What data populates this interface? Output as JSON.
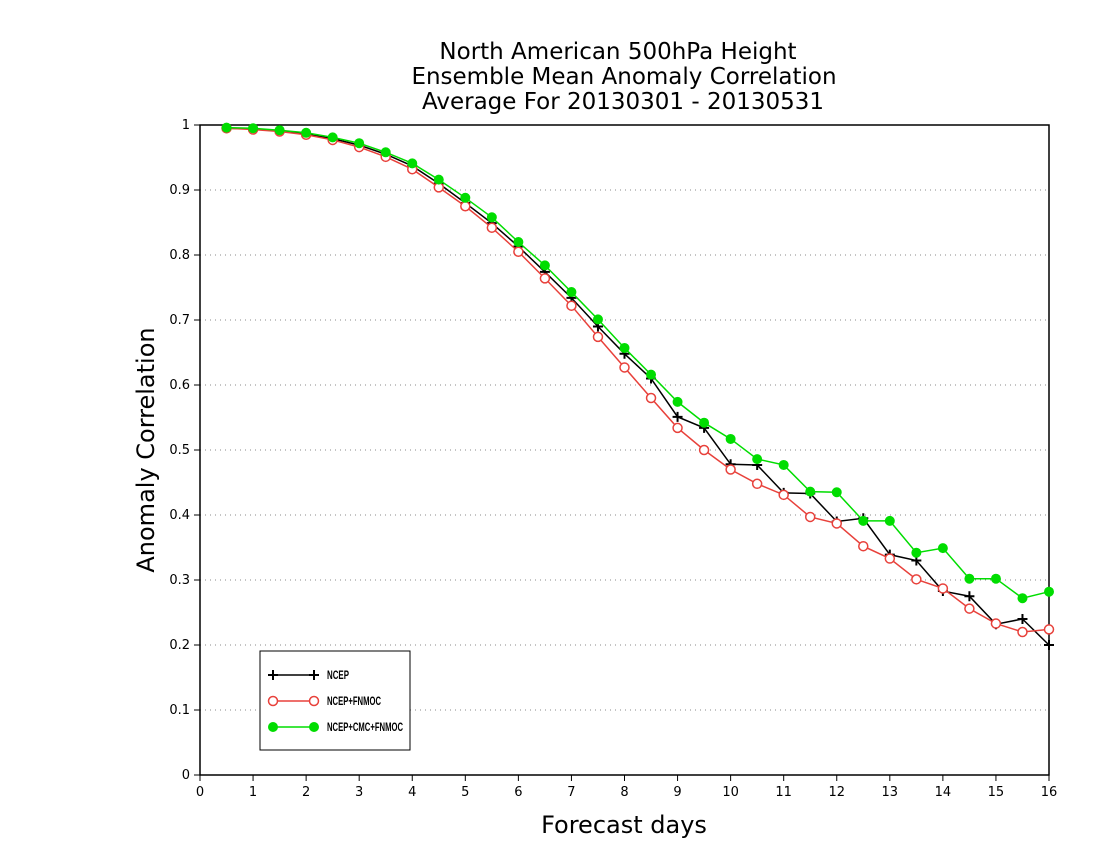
{
  "chart_data": {
    "type": "line",
    "title_lines": [
      "North American 500hPa Height",
      "Ensemble Mean Anomaly Correlation",
      "Average For 20130301 - 20130531"
    ],
    "xlabel": "Forecast days",
    "ylabel": "Anomaly Correlation",
    "xlim": [
      0,
      16
    ],
    "ylim": [
      0,
      1
    ],
    "x_ticks": [
      "0",
      "1",
      "2",
      "3",
      "4",
      "5",
      "6",
      "7",
      "8",
      "9",
      "10",
      "11",
      "12",
      "13",
      "14",
      "15",
      "16"
    ],
    "y_ticks": [
      "0",
      "0.1",
      "0.2",
      "0.3",
      "0.4",
      "0.5",
      "0.6",
      "0.7",
      "0.8",
      "0.9",
      "1"
    ],
    "grid": "dotted horizontal",
    "legend_position": "bottom-left",
    "x": [
      0.5,
      1,
      1.5,
      2,
      2.5,
      3,
      3.5,
      4,
      4.5,
      5,
      5.5,
      6,
      6.5,
      7,
      7.5,
      8,
      8.5,
      9,
      9.5,
      10,
      10.5,
      11,
      11.5,
      12,
      12.5,
      13,
      13.5,
      14,
      14.5,
      15,
      15.5,
      16
    ],
    "series": [
      {
        "name": "NCEP",
        "color": "#000000",
        "marker": "plus",
        "values": [
          0.995,
          0.994,
          0.991,
          0.986,
          0.979,
          0.969,
          0.955,
          0.937,
          0.91,
          0.88,
          0.849,
          0.813,
          0.774,
          0.734,
          0.69,
          0.648,
          0.61,
          0.551,
          0.534,
          0.478,
          0.477,
          0.434,
          0.433,
          0.39,
          0.395,
          0.339,
          0.33,
          0.283,
          0.275,
          0.232,
          0.24,
          0.2
        ]
      },
      {
        "name": "NCEP+FNMOC",
        "color": "#e8413b",
        "marker": "open-circle",
        "values": [
          0.995,
          0.993,
          0.99,
          0.985,
          0.977,
          0.966,
          0.951,
          0.932,
          0.904,
          0.875,
          0.842,
          0.805,
          0.764,
          0.722,
          0.674,
          0.627,
          0.58,
          0.534,
          0.5,
          0.47,
          0.448,
          0.431,
          0.397,
          0.387,
          0.352,
          0.333,
          0.301,
          0.287,
          0.256,
          0.233,
          0.22,
          0.224
        ]
      },
      {
        "name": "NCEP+CMC+FNMOC",
        "color": "#00dd00",
        "marker": "filled-circle",
        "values": [
          0.996,
          0.995,
          0.992,
          0.988,
          0.981,
          0.972,
          0.958,
          0.941,
          0.916,
          0.888,
          0.858,
          0.82,
          0.784,
          0.743,
          0.701,
          0.657,
          0.616,
          0.574,
          0.542,
          0.517,
          0.486,
          0.477,
          0.436,
          0.435,
          0.391,
          0.391,
          0.342,
          0.349,
          0.302,
          0.302,
          0.272,
          0.282
        ]
      }
    ]
  }
}
